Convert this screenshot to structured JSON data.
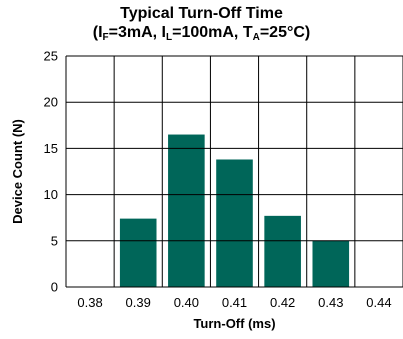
{
  "chart_data": {
    "type": "bar",
    "title_line1": "Typical Turn-Off Time",
    "subtitle_parts": {
      "open": "(I",
      "sub_f": "F",
      "part1": "=3mA, I",
      "sub_l": "L",
      "part2": "=100mA, T",
      "sub_a": "A",
      "part3": "=25°C)"
    },
    "xlabel": "Turn-Off (ms)",
    "ylabel": "Device Count (N)",
    "x_ticks": [
      "0.38",
      "0.39",
      "0.40",
      "0.41",
      "0.42",
      "0.43",
      "0.44"
    ],
    "y_ticks": [
      "0",
      "5",
      "10",
      "15",
      "20",
      "25"
    ],
    "ylim": [
      0,
      25
    ],
    "categories": [
      "0.39",
      "0.40",
      "0.41",
      "0.42",
      "0.43"
    ],
    "values": [
      7.4,
      16.5,
      13.8,
      7.7,
      5.0
    ],
    "grid": true,
    "bar_color": "#006659",
    "grid_color": "#000000"
  }
}
